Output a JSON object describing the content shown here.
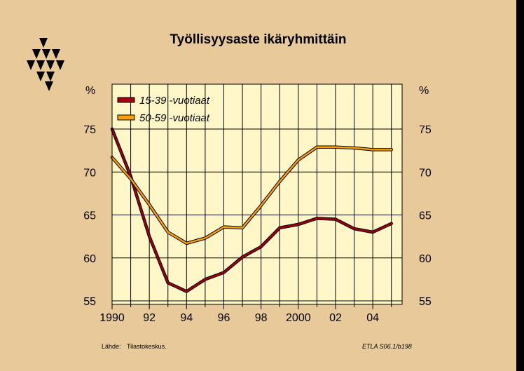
{
  "title": "Työllisyysaste ikäryhmittäin",
  "source": {
    "label": "Lähde:",
    "value": "Tilastokeskus."
  },
  "reference": "ETLA S06.1/b198",
  "chart_data": {
    "type": "line",
    "title": "Työllisyysaste ikäryhmittäin",
    "y_unit_label": "%",
    "ylim": [
      55,
      80
    ],
    "y_ticks": [
      55,
      60,
      65,
      70,
      75
    ],
    "xlim": [
      1990,
      2006
    ],
    "x_ticks": [
      {
        "value": 1990,
        "label": "1990"
      },
      {
        "value": 1992,
        "label": "92"
      },
      {
        "value": 1994,
        "label": "94"
      },
      {
        "value": 1996,
        "label": "96"
      },
      {
        "value": 1998,
        "label": "98"
      },
      {
        "value": 2000,
        "label": "2000"
      },
      {
        "value": 2002,
        "label": "02"
      },
      {
        "value": 2004,
        "label": "04"
      }
    ],
    "grid": true,
    "legend_position": "top-left",
    "x": [
      1990,
      1991,
      1992,
      1993,
      1994,
      1995,
      1996,
      1997,
      1998,
      1999,
      2000,
      2001,
      2002,
      2003,
      2004,
      2005
    ],
    "series": [
      {
        "name": "15-39 -vuotiaat",
        "color": "#a0000a",
        "values": [
          75.0,
          69.5,
          62.5,
          57.1,
          56.1,
          57.5,
          58.3,
          60.1,
          61.3,
          63.5,
          63.9,
          64.6,
          64.5,
          63.4,
          63.0,
          64.0
        ]
      },
      {
        "name": "50-59 -vuotiaat",
        "color": "#ffa000",
        "values": [
          71.7,
          69.2,
          66.2,
          63.0,
          61.7,
          62.3,
          63.6,
          63.5,
          66.1,
          68.9,
          71.4,
          72.9,
          72.9,
          72.8,
          72.6,
          72.6
        ]
      }
    ]
  }
}
